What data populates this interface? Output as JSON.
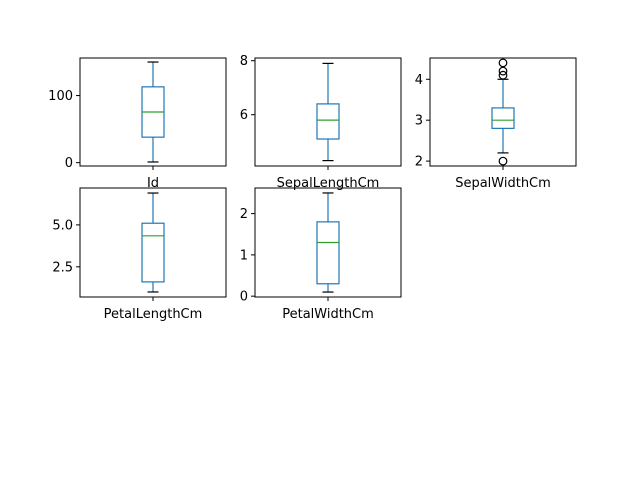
{
  "chart_data": [
    {
      "type": "box",
      "xlabel": "Id",
      "ylim": [
        -5,
        156
      ],
      "yticks": [
        {
          "v": 0,
          "t": "0"
        },
        {
          "v": 100,
          "t": "100"
        }
      ],
      "box": {
        "min": 1,
        "q1": 38,
        "median": 75.5,
        "q3": 113,
        "max": 150,
        "outliers": []
      }
    },
    {
      "type": "box",
      "xlabel": "SepalLengthCm",
      "ylim": [
        4.1,
        8.1
      ],
      "yticks": [
        {
          "v": 6,
          "t": "6"
        },
        {
          "v": 8,
          "t": "8"
        }
      ],
      "box": {
        "min": 4.3,
        "q1": 5.1,
        "median": 5.8,
        "q3": 6.4,
        "max": 7.9,
        "outliers": []
      }
    },
    {
      "type": "box",
      "xlabel": "SepalWidthCm",
      "ylim": [
        1.88,
        4.52
      ],
      "yticks": [
        {
          "v": 2,
          "t": "2"
        },
        {
          "v": 3,
          "t": "3"
        },
        {
          "v": 4,
          "t": "4"
        }
      ],
      "box": {
        "min": 2.2,
        "q1": 2.8,
        "median": 3.0,
        "q3": 3.3,
        "max": 4.0,
        "outliers": [
          4.4,
          4.2,
          4.1,
          2.0
        ]
      }
    },
    {
      "type": "box",
      "xlabel": "PetalLengthCm",
      "ylim": [
        0.7,
        7.2
      ],
      "yticks": [
        {
          "v": 2.5,
          "t": "2.5"
        },
        {
          "v": 5.0,
          "t": "5.0"
        }
      ],
      "box": {
        "min": 1.0,
        "q1": 1.6,
        "median": 4.35,
        "q3": 5.1,
        "max": 6.9,
        "outliers": []
      }
    },
    {
      "type": "box",
      "xlabel": "PetalWidthCm",
      "ylim": [
        -0.02,
        2.62
      ],
      "yticks": [
        {
          "v": 0,
          "t": "0"
        },
        {
          "v": 1,
          "t": "1"
        },
        {
          "v": 2,
          "t": "2"
        }
      ],
      "box": {
        "min": 0.1,
        "q1": 0.3,
        "median": 1.3,
        "q3": 1.8,
        "max": 2.5,
        "outliers": []
      }
    }
  ],
  "colors": {
    "box": "#1f77b4",
    "median": "#2ca02c",
    "axis": "#000000"
  }
}
